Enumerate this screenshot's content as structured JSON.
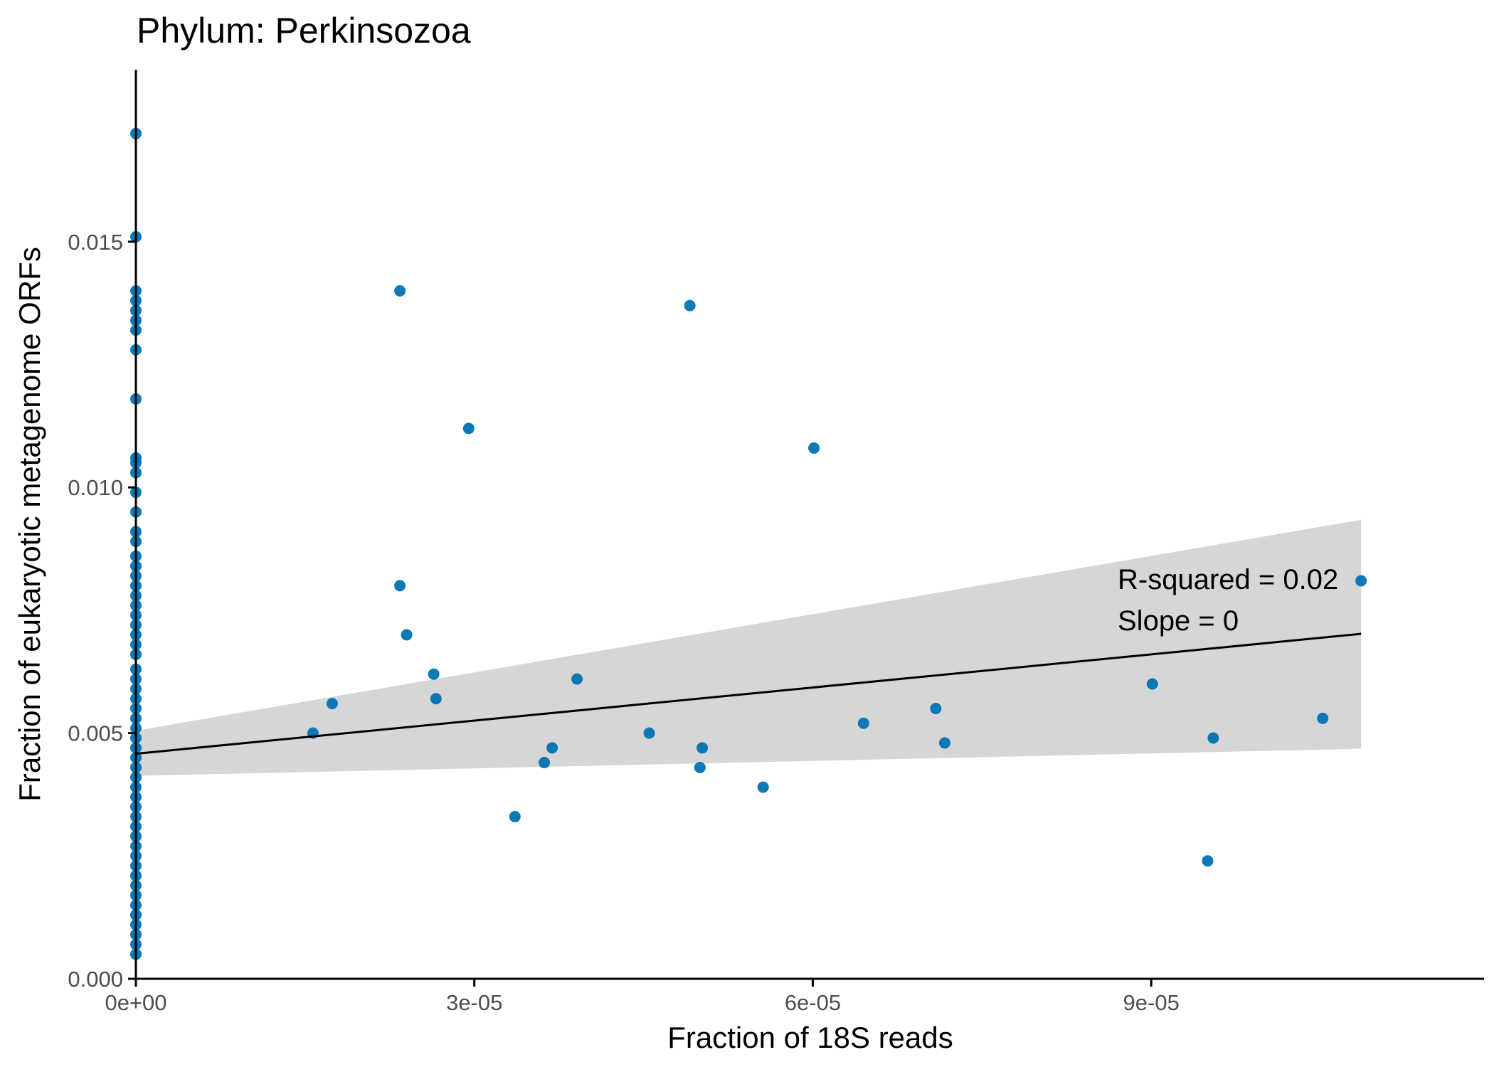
{
  "chart_data": {
    "type": "scatter",
    "title": "Phylum:  Perkinsozoa",
    "xlabel": "Fraction of 18S reads",
    "ylabel": "Fraction of eukaryotic metagenome ORFs",
    "xlim": [
      0,
      0.0001195
    ],
    "ylim": [
      0,
      0.0185
    ],
    "x_ticks": [
      {
        "value": 0,
        "label": "0e+00"
      },
      {
        "value": 3e-05,
        "label": "3e-05"
      },
      {
        "value": 6e-05,
        "label": "6e-05"
      },
      {
        "value": 9e-05,
        "label": "9e-05"
      }
    ],
    "y_ticks": [
      {
        "value": 0,
        "label": "0.000"
      },
      {
        "value": 0.005,
        "label": "0.005"
      },
      {
        "value": 0.01,
        "label": "0.010"
      },
      {
        "value": 0.015,
        "label": "0.015"
      }
    ],
    "grid": false,
    "legend": "none",
    "colors": {
      "points": "#0072B2",
      "line": "#000000",
      "band": "#d6d6d6",
      "axis": "#000000"
    },
    "series": [
      {
        "points": [
          [
            0,
            0.0172
          ],
          [
            0,
            0.0151
          ],
          [
            0,
            0.014
          ],
          [
            0,
            0.0138
          ],
          [
            0,
            0.0136
          ],
          [
            0,
            0.0134
          ],
          [
            0,
            0.0132
          ],
          [
            0,
            0.0128
          ],
          [
            0,
            0.0118
          ],
          [
            0,
            0.0106
          ],
          [
            0,
            0.0105
          ],
          [
            0,
            0.0103
          ],
          [
            0,
            0.0099
          ],
          [
            0,
            0.0095
          ],
          [
            0,
            0.0091
          ],
          [
            0,
            0.0089
          ],
          [
            0,
            0.0086
          ],
          [
            0,
            0.0084
          ],
          [
            0,
            0.0082
          ],
          [
            0,
            0.008
          ],
          [
            0,
            0.0078
          ],
          [
            0,
            0.0076
          ],
          [
            0,
            0.0074
          ],
          [
            0,
            0.0072
          ],
          [
            0,
            0.007
          ],
          [
            0,
            0.0068
          ],
          [
            0,
            0.0066
          ],
          [
            0,
            0.0063
          ],
          [
            0,
            0.0061
          ],
          [
            0,
            0.0059
          ],
          [
            0,
            0.0057
          ],
          [
            0,
            0.0055
          ],
          [
            0,
            0.0053
          ],
          [
            0,
            0.0051
          ],
          [
            0,
            0.0049
          ],
          [
            0,
            0.0047
          ],
          [
            0,
            0.0045
          ],
          [
            0,
            0.0043
          ],
          [
            0,
            0.0041
          ],
          [
            0,
            0.0039
          ],
          [
            0,
            0.0037
          ],
          [
            0,
            0.0035
          ],
          [
            0,
            0.0033
          ],
          [
            0,
            0.0031
          ],
          [
            0,
            0.0029
          ],
          [
            0,
            0.0027
          ],
          [
            0,
            0.0025
          ],
          [
            0,
            0.0023
          ],
          [
            0,
            0.0021
          ],
          [
            0,
            0.0019
          ],
          [
            0,
            0.0017
          ],
          [
            0,
            0.0015
          ],
          [
            0,
            0.0013
          ],
          [
            0,
            0.0011
          ],
          [
            0,
            0.0009
          ],
          [
            0,
            0.0007
          ],
          [
            0,
            0.0005
          ],
          [
            1.57e-05,
            0.005
          ],
          [
            1.74e-05,
            0.0056
          ],
          [
            2.34e-05,
            0.014
          ],
          [
            2.34e-05,
            0.008
          ],
          [
            2.4e-05,
            0.007
          ],
          [
            2.64e-05,
            0.0062
          ],
          [
            2.66e-05,
            0.0057
          ],
          [
            2.95e-05,
            0.0112
          ],
          [
            3.36e-05,
            0.0033
          ],
          [
            3.62e-05,
            0.0044
          ],
          [
            3.69e-05,
            0.0047
          ],
          [
            3.91e-05,
            0.0061
          ],
          [
            4.55e-05,
            0.005
          ],
          [
            4.91e-05,
            0.0137
          ],
          [
            5e-05,
            0.0043
          ],
          [
            5.02e-05,
            0.0047
          ],
          [
            5.56e-05,
            0.0039
          ],
          [
            6.01e-05,
            0.0108
          ],
          [
            6.45e-05,
            0.0052
          ],
          [
            7.09e-05,
            0.0055
          ],
          [
            7.17e-05,
            0.0048
          ],
          [
            9.01e-05,
            0.006
          ],
          [
            9.5e-05,
            0.0024
          ],
          [
            9.55e-05,
            0.0049
          ],
          [
            0.0001052,
            0.0053
          ],
          [
            0.0001086,
            0.0081
          ]
        ]
      }
    ],
    "fit": {
      "x": [
        0,
        0.0001086
      ],
      "y": [
        0.00458,
        0.00702
      ],
      "ci_upper": [
        0.00505,
        0.00934
      ],
      "ci_lower": [
        0.00413,
        0.00468
      ]
    },
    "annotations": {
      "r_squared": "R-squared =  0.02",
      "slope": "Slope =  0"
    }
  }
}
